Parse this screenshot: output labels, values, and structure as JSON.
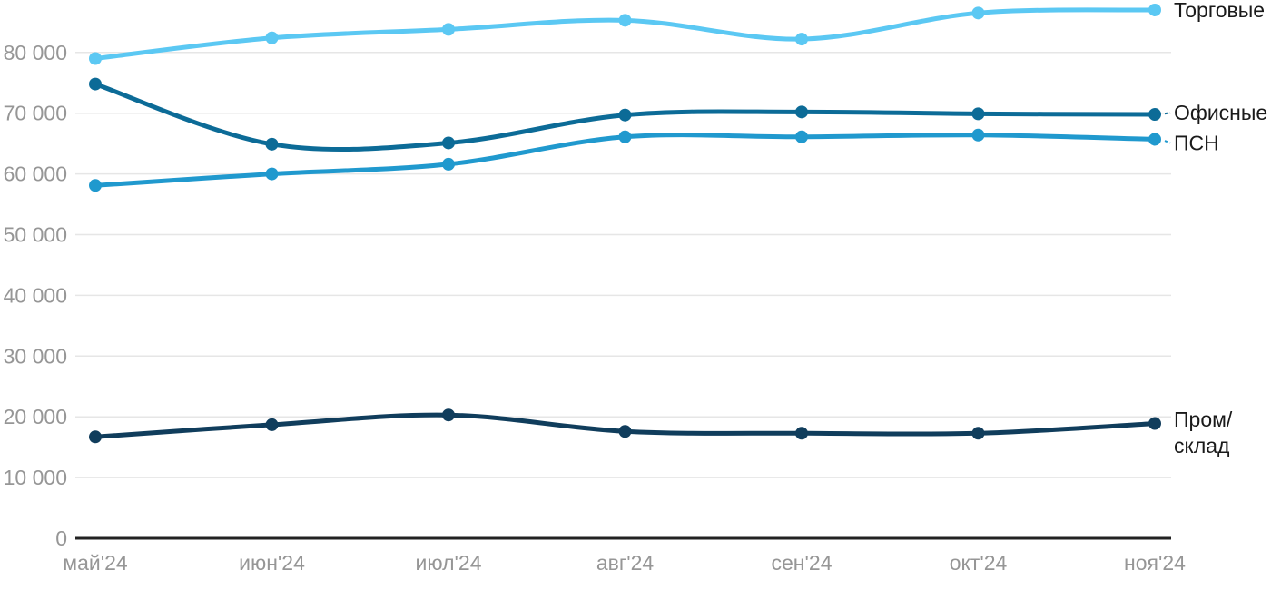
{
  "chart_data": {
    "type": "line",
    "title": "",
    "xlabel": "",
    "ylabel": "",
    "x_labels": [
      "май'24",
      "июн'24",
      "июл'24",
      "авг'24",
      "сен'24",
      "окт'24",
      "ноя'24"
    ],
    "series": [
      {
        "key": "torgovye",
        "name": "Торговые",
        "label_lines": [
          "Торговые"
        ],
        "color": "#5BC8F3",
        "values": [
          79000,
          82400,
          83800,
          85300,
          82200,
          86500,
          87000
        ],
        "leader": false,
        "label_dy": 0
      },
      {
        "key": "ofisnye",
        "name": "Офисные",
        "label_lines": [
          "Офисные"
        ],
        "color": "#0C6B97",
        "values": [
          74800,
          64900,
          65100,
          69700,
          70200,
          69900,
          69800
        ],
        "leader": true,
        "label_dy": -2
      },
      {
        "key": "psn",
        "name": "ПСН",
        "label_lines": [
          "ПСН"
        ],
        "color": "#2099CE",
        "values": [
          58100,
          60000,
          61600,
          66100,
          66100,
          66400,
          65700
        ],
        "leader": true,
        "label_dy": 4
      },
      {
        "key": "prom-sklad",
        "name": "Пром/склад",
        "label_lines": [
          "Пром/",
          "склад"
        ],
        "color": "#103D5C",
        "values": [
          16700,
          18700,
          20300,
          17600,
          17300,
          17300,
          18900
        ],
        "leader": false,
        "label_dy": 10
      }
    ],
    "yticks": [
      {
        "value": 0,
        "label": "0"
      },
      {
        "value": 10000,
        "label": "10 000"
      },
      {
        "value": 20000,
        "label": "20 000"
      },
      {
        "value": 30000,
        "label": "30 000"
      },
      {
        "value": 40000,
        "label": "40 000"
      },
      {
        "value": 50000,
        "label": "50 000"
      },
      {
        "value": 60000,
        "label": "60 000"
      },
      {
        "value": 70000,
        "label": "70 000"
      },
      {
        "value": 80000,
        "label": "80 000"
      }
    ],
    "ylim": [
      0,
      88500
    ],
    "grid": true,
    "legend_position": "right-inline",
    "colors": {
      "grid": "#E6E6E6",
      "axis": "#222222",
      "tick_text": "#969696",
      "label_text": "#1A1A1A",
      "background": "#FFFFFF"
    }
  }
}
